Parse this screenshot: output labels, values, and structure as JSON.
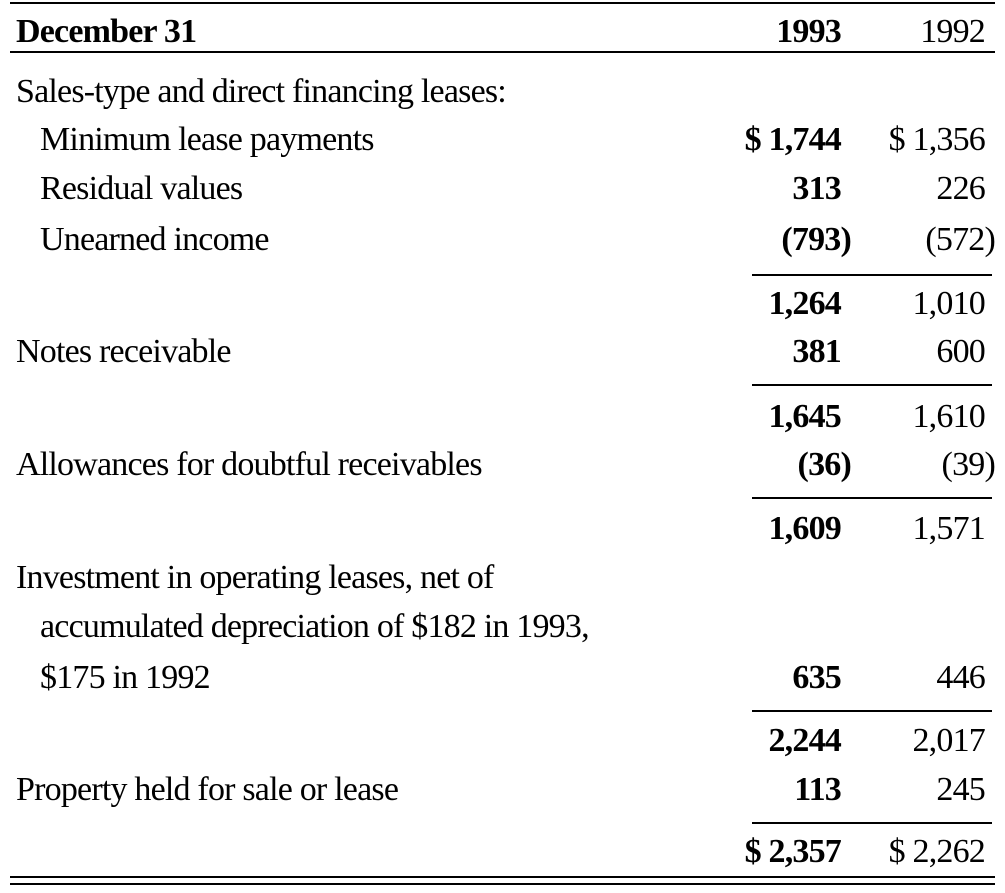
{
  "table": {
    "header": {
      "label": "December 31",
      "col_1993": "1993",
      "col_1992": "1992"
    },
    "rows": [
      {
        "label": "Sales-type and direct financing leases:",
        "v1993": "",
        "v1992": ""
      },
      {
        "label": "Minimum lease payments",
        "v1993": "$ 1,744",
        "v1992": "$ 1,356"
      },
      {
        "label": "Residual values",
        "v1993": "313",
        "v1992": "226"
      },
      {
        "label": "Unearned income",
        "v1993": "(793)",
        "v1992": "(572)"
      },
      {
        "label": "",
        "v1993": "1,264",
        "v1992": "1,010"
      },
      {
        "label": "Notes receivable",
        "v1993": "381",
        "v1992": "600"
      },
      {
        "label": "",
        "v1993": "1,645",
        "v1992": "1,610"
      },
      {
        "label": "Allowances for doubtful receivables",
        "v1993": "(36)",
        "v1992": "(39)"
      },
      {
        "label": "",
        "v1993": "1,609",
        "v1992": "1,571"
      },
      {
        "label": "Investment in operating leases, net of",
        "v1993": "",
        "v1992": ""
      },
      {
        "label": "accumulated depreciation of $182 in 1993,",
        "v1993": "",
        "v1992": ""
      },
      {
        "label": "$175 in 1992",
        "v1993": "635",
        "v1992": "446"
      },
      {
        "label": "",
        "v1993": "2,244",
        "v1992": "2,017"
      },
      {
        "label": "Property held for sale or lease",
        "v1993": "113",
        "v1992": "245"
      },
      {
        "label": "",
        "v1993": "$ 2,357",
        "v1992": "$ 2,262"
      }
    ]
  }
}
